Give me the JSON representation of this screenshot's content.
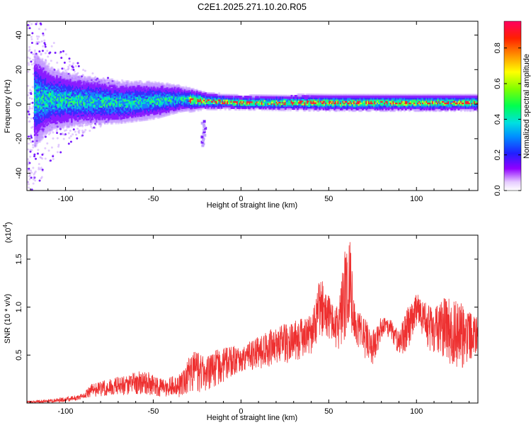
{
  "title": "C2E1.2025.271.10.20.R05",
  "chart_data": [
    {
      "type": "heatmap",
      "xlabel": "Height of straight line (km)",
      "ylabel": "Frequency (Hz)",
      "xlim": [
        -122,
        135
      ],
      "ylim": [
        -50,
        48
      ],
      "xticks": [
        -100,
        -50,
        0,
        50,
        100
      ],
      "yticks": [
        -40,
        -20,
        0,
        20,
        40
      ],
      "xtick_labels": [
        "-100",
        "-50",
        "0",
        "50",
        "100"
      ],
      "ytick_labels": [
        "-40",
        "-20",
        "0",
        "20",
        "40"
      ],
      "colorbar": {
        "label": "Normalized spectral amplitude",
        "range": [
          0,
          0.95
        ],
        "ticks": [
          0.0,
          0.2,
          0.4,
          0.6,
          0.8
        ],
        "tick_labels": [
          "0.0",
          "0.2",
          "0.4",
          "0.6",
          "0.8"
        ]
      },
      "colors": {
        "band_low": "#7a00ff",
        "band_mid": "#00ff80",
        "band_high": "#ff0000"
      },
      "band_profile": [
        {
          "x": -118,
          "center": 3,
          "halfwidth": 18
        },
        {
          "x": -110,
          "center": 3,
          "halfwidth": 12
        },
        {
          "x": -90,
          "center": 2,
          "halfwidth": 9
        },
        {
          "x": -70,
          "center": 1,
          "halfwidth": 8
        },
        {
          "x": -50,
          "center": 2,
          "halfwidth": 7
        },
        {
          "x": -35,
          "center": 3,
          "halfwidth": 5
        },
        {
          "x": -20,
          "center": 2,
          "halfwidth": 3
        },
        {
          "x": 0,
          "center": 1,
          "halfwidth": 2.5
        },
        {
          "x": 50,
          "center": 1,
          "halfwidth": 3
        },
        {
          "x": 100,
          "center": 1,
          "halfwidth": 3
        },
        {
          "x": 135,
          "center": 1,
          "halfwidth": 3
        }
      ],
      "features": [
        {
          "name": "low-frequency tail",
          "x": -22,
          "y_range": [
            -24,
            -10
          ]
        }
      ]
    },
    {
      "type": "line",
      "xlabel": "Height of straight line (km)",
      "ylabel": "SNR (10 * v/v)",
      "y_scale_label": "(x10^4)",
      "y_scale_text": "(x10",
      "y_scale_exp": "4",
      "y_scale_close": ")",
      "xlim": [
        -122,
        135
      ],
      "ylim": [
        0,
        1.75
      ],
      "xticks": [
        -100,
        -50,
        0,
        50,
        100
      ],
      "yticks": [
        0.5,
        1.0,
        1.5
      ],
      "xtick_labels": [
        "-100",
        "-50",
        "0",
        "50",
        "100"
      ],
      "ytick_labels": [
        "0.5",
        "1.0",
        "1.5"
      ],
      "color": "#ee3030",
      "envelope": {
        "x": [
          -122,
          -110,
          -100,
          -90,
          -85,
          -75,
          -65,
          -55,
          -45,
          -35,
          -28,
          -20,
          -10,
          0,
          10,
          20,
          30,
          40,
          45,
          50,
          53,
          57,
          60,
          62,
          65,
          70,
          75,
          80,
          85,
          90,
          95,
          100,
          105,
          110,
          115,
          120,
          125,
          130,
          135
        ],
        "low": [
          0.0,
          0.0,
          0.01,
          0.04,
          0.06,
          0.08,
          0.08,
          0.08,
          0.06,
          0.06,
          0.1,
          0.12,
          0.22,
          0.3,
          0.35,
          0.4,
          0.42,
          0.5,
          0.65,
          0.62,
          0.58,
          0.55,
          0.7,
          0.8,
          0.6,
          0.48,
          0.38,
          0.65,
          0.7,
          0.48,
          0.55,
          0.8,
          0.6,
          0.5,
          0.45,
          0.4,
          0.35,
          0.4,
          0.5
        ],
        "high": [
          0.02,
          0.04,
          0.06,
          0.1,
          0.2,
          0.25,
          0.3,
          0.35,
          0.25,
          0.3,
          0.55,
          0.5,
          0.6,
          0.6,
          0.7,
          0.8,
          0.85,
          0.95,
          1.3,
          1.2,
          0.95,
          1.25,
          1.7,
          1.7,
          1.0,
          0.92,
          0.75,
          0.9,
          0.88,
          0.75,
          1.0,
          1.15,
          1.05,
          1.0,
          1.1,
          1.1,
          1.05,
          0.95,
          0.9
        ]
      }
    }
  ]
}
